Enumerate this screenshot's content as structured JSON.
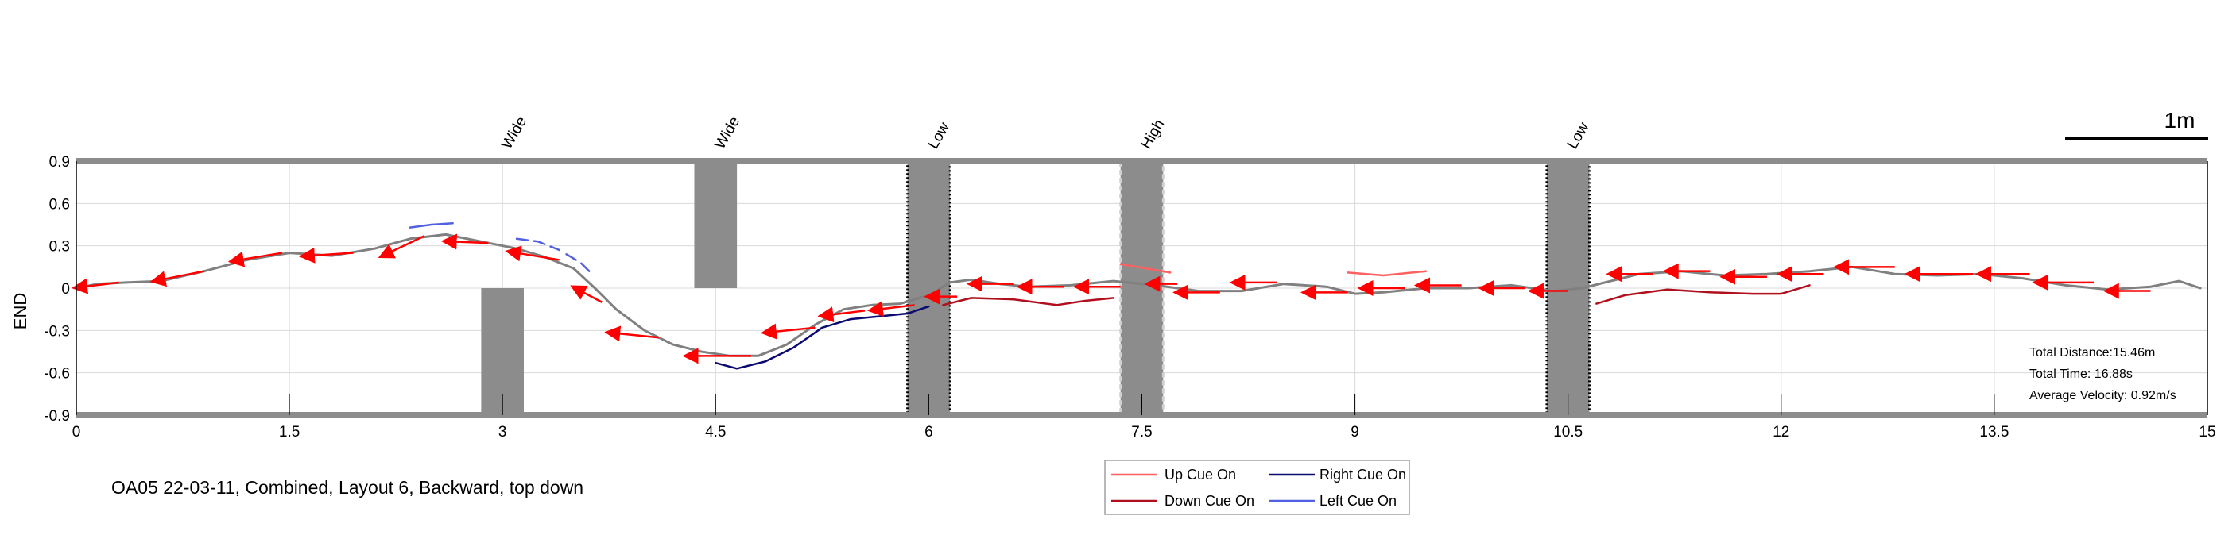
{
  "chart_data": {
    "type": "line",
    "title": "OA05 22-03-11, Combined, Layout 6, Backward, top down",
    "xlabel": "",
    "ylabel": "END",
    "xlim": [
      0,
      15
    ],
    "ylim": [
      -0.9,
      0.9
    ],
    "grid": true,
    "x_ticks": [
      0,
      1.5,
      3,
      4.5,
      6,
      7.5,
      9,
      10.5,
      12,
      13.5,
      15
    ],
    "x_tick_labels": [
      "0",
      "1.5",
      "3",
      "4.5",
      "6",
      "7.5",
      "9",
      "10.5",
      "12",
      "13.5",
      "15"
    ],
    "y_ticks": [
      0.9,
      0.6,
      0.3,
      0,
      -0.3,
      -0.6,
      -0.9
    ],
    "y_tick_labels": [
      "0.9",
      "0.6",
      "0.3",
      "0",
      "-0.3",
      "-0.6",
      "-0.9"
    ],
    "scale_bar_label": "1m",
    "obstacles": [
      {
        "label": "",
        "x0": 2.85,
        "x1": 3.15,
        "y0": -0.9,
        "y1": 0,
        "style": "solid"
      },
      {
        "label": "Wide",
        "x0": 4.35,
        "x1": 4.65,
        "y0": 0,
        "y1": 0.9,
        "style": "solid",
        "label_x": 4.55
      },
      {
        "label": "Wide",
        "x0": 2.85,
        "x1": 3.15,
        "y0": -0.9,
        "y1": 0,
        "style": "label-only",
        "label_x": 3.05
      },
      {
        "label": "Low",
        "x0": 5.85,
        "x1": 6.15,
        "y0": -0.9,
        "y1": 0.9,
        "style": "dotted-black",
        "label_x": 6.05
      },
      {
        "label": "High",
        "x0": 7.35,
        "x1": 7.65,
        "y0": -0.9,
        "y1": 0.9,
        "style": "dashed-light",
        "label_x": 7.55
      },
      {
        "label": "Low",
        "x0": 10.35,
        "x1": 10.65,
        "y0": -0.9,
        "y1": 0.9,
        "style": "dotted-black",
        "label_x": 10.55
      }
    ],
    "series": [
      {
        "name": "",
        "color": "#808080",
        "x": [
          0,
          0.15,
          0.35,
          0.6,
          0.9,
          1.2,
          1.5,
          1.8,
          2.1,
          2.35,
          2.6,
          2.85,
          3.1,
          3.3,
          3.5,
          3.65,
          3.8,
          4.0,
          4.2,
          4.4,
          4.6,
          4.8,
          5.0,
          5.2,
          5.4,
          5.6,
          5.8,
          6.0,
          6.15,
          6.3,
          6.5,
          6.7,
          7.0,
          7.3,
          7.6,
          7.9,
          8.2,
          8.5,
          8.8,
          9.0,
          9.2,
          9.5,
          9.8,
          10.1,
          10.4,
          10.6,
          10.8,
          11.0,
          11.3,
          11.6,
          11.9,
          12.2,
          12.5,
          12.8,
          13.1,
          13.4,
          13.7,
          14.0,
          14.3,
          14.6,
          14.8,
          14.95
        ],
        "y": [
          0,
          0.03,
          0.04,
          0.05,
          0.12,
          0.2,
          0.25,
          0.23,
          0.28,
          0.35,
          0.38,
          0.33,
          0.28,
          0.22,
          0.14,
          0.0,
          -0.15,
          -0.3,
          -0.4,
          -0.45,
          -0.48,
          -0.48,
          -0.4,
          -0.26,
          -0.15,
          -0.12,
          -0.11,
          -0.05,
          0.04,
          0.06,
          0.03,
          0.01,
          0.02,
          0.05,
          0.02,
          -0.02,
          -0.02,
          0.03,
          0.01,
          -0.04,
          -0.03,
          0.0,
          0.0,
          0.02,
          -0.02,
          0.0,
          0.05,
          0.1,
          0.12,
          0.09,
          0.1,
          0.12,
          0.15,
          0.1,
          0.09,
          0.1,
          0.07,
          0.02,
          -0.01,
          0.01,
          0.05,
          0.0
        ]
      },
      {
        "name": "Up Cue On",
        "color": "#ff6060",
        "segments": [
          {
            "x": [
              7.35,
              7.7
            ],
            "y": [
              0.17,
              0.11
            ]
          },
          {
            "x": [
              8.95,
              9.2,
              9.5
            ],
            "y": [
              0.11,
              0.09,
              0.12
            ]
          }
        ]
      },
      {
        "name": "Down Cue On",
        "color": "#b0101e",
        "segments": [
          {
            "x": [
              6.1,
              6.3,
              6.6,
              6.9,
              7.1,
              7.3
            ],
            "y": [
              -0.12,
              -0.07,
              -0.08,
              -0.12,
              -0.09,
              -0.07
            ]
          },
          {
            "x": [
              10.7,
              10.9,
              11.2,
              11.5,
              11.8,
              12.0,
              12.2
            ],
            "y": [
              -0.11,
              -0.05,
              -0.01,
              -0.03,
              -0.04,
              -0.04,
              0.02
            ]
          }
        ]
      },
      {
        "name": "Right Cue On",
        "color": "#0a0a70",
        "segments": [
          {
            "x": [
              4.5,
              4.65,
              4.85,
              5.05,
              5.25,
              5.45,
              5.65,
              5.85,
              6.0
            ],
            "y": [
              -0.53,
              -0.57,
              -0.52,
              -0.42,
              -0.28,
              -0.22,
              -0.2,
              -0.18,
              -0.13
            ]
          }
        ]
      },
      {
        "name": "Left Cue On",
        "color": "#5060e0",
        "segments": [
          {
            "x": [
              2.35,
              2.5,
              2.65
            ],
            "y": [
              0.43,
              0.45,
              0.46
            ]
          },
          {
            "x": [
              3.1,
              3.25,
              3.4
            ],
            "y": [
              0.35,
              0.33,
              0.27
            ]
          },
          {
            "x": [
              3.45,
              3.55,
              3.62
            ],
            "y": [
              0.24,
              0.18,
              0.11
            ]
          }
        ]
      }
    ],
    "arrows": [
      {
        "x": 0.3,
        "y": 0.04,
        "dx": -0.25,
        "dy": -0.03
      },
      {
        "x": 0.9,
        "y": 0.12,
        "dx": -0.3,
        "dy": -0.06
      },
      {
        "x": 1.45,
        "y": 0.25,
        "dx": -0.3,
        "dy": -0.05
      },
      {
        "x": 1.95,
        "y": 0.25,
        "dx": -0.3,
        "dy": -0.02
      },
      {
        "x": 2.45,
        "y": 0.37,
        "dx": -0.25,
        "dy": -0.12
      },
      {
        "x": 2.9,
        "y": 0.32,
        "dx": -0.25,
        "dy": 0.01
      },
      {
        "x": 3.4,
        "y": 0.2,
        "dx": -0.3,
        "dy": 0.05
      },
      {
        "x": 3.7,
        "y": -0.1,
        "dx": -0.15,
        "dy": 0.08
      },
      {
        "x": 4.1,
        "y": -0.35,
        "dx": -0.3,
        "dy": 0.03
      },
      {
        "x": 4.75,
        "y": -0.48,
        "dx": -0.4,
        "dy": 0.0
      },
      {
        "x": 5.2,
        "y": -0.28,
        "dx": -0.3,
        "dy": -0.03
      },
      {
        "x": 5.55,
        "y": -0.16,
        "dx": -0.25,
        "dy": -0.03
      },
      {
        "x": 5.9,
        "y": -0.12,
        "dx": -0.25,
        "dy": -0.03
      },
      {
        "x": 6.2,
        "y": -0.06,
        "dx": -0.15,
        "dy": 0.0
      },
      {
        "x": 6.6,
        "y": 0.03,
        "dx": -0.25,
        "dy": 0.0
      },
      {
        "x": 6.95,
        "y": 0.01,
        "dx": -0.25,
        "dy": 0.0
      },
      {
        "x": 7.35,
        "y": 0.01,
        "dx": -0.25,
        "dy": 0.0
      },
      {
        "x": 7.75,
        "y": 0.03,
        "dx": -0.15,
        "dy": 0.0
      },
      {
        "x": 8.05,
        "y": -0.03,
        "dx": -0.25,
        "dy": 0.0
      },
      {
        "x": 8.45,
        "y": 0.04,
        "dx": -0.25,
        "dy": 0.0
      },
      {
        "x": 8.95,
        "y": -0.03,
        "dx": -0.25,
        "dy": 0.0
      },
      {
        "x": 9.35,
        "y": 0.0,
        "dx": -0.25,
        "dy": 0.0
      },
      {
        "x": 9.75,
        "y": 0.02,
        "dx": -0.25,
        "dy": 0.0
      },
      {
        "x": 10.2,
        "y": 0.0,
        "dx": -0.25,
        "dy": 0.0
      },
      {
        "x": 10.5,
        "y": -0.02,
        "dx": -0.2,
        "dy": 0.0
      },
      {
        "x": 11.1,
        "y": 0.1,
        "dx": -0.25,
        "dy": 0.0
      },
      {
        "x": 11.5,
        "y": 0.12,
        "dx": -0.25,
        "dy": 0.0
      },
      {
        "x": 11.9,
        "y": 0.08,
        "dx": -0.25,
        "dy": 0.0
      },
      {
        "x": 12.3,
        "y": 0.1,
        "dx": -0.25,
        "dy": 0.0
      },
      {
        "x": 12.8,
        "y": 0.15,
        "dx": -0.35,
        "dy": 0.0
      },
      {
        "x": 13.35,
        "y": 0.1,
        "dx": -0.4,
        "dy": 0.0
      },
      {
        "x": 13.75,
        "y": 0.1,
        "dx": -0.3,
        "dy": 0.0
      },
      {
        "x": 14.2,
        "y": 0.04,
        "dx": -0.35,
        "dy": 0.0
      },
      {
        "x": 14.6,
        "y": -0.02,
        "dx": -0.25,
        "dy": 0.0
      }
    ],
    "legend": {
      "placement": "bottom-center",
      "entries": [
        {
          "label": "Up Cue On",
          "color": "#ff6060"
        },
        {
          "label": "Right Cue On",
          "color": "#0a0a70"
        },
        {
          "label": "Down Cue On",
          "color": "#b0101e"
        },
        {
          "label": "Left Cue On",
          "color": "#5060e0"
        }
      ]
    },
    "stats": {
      "total_distance": "Total Distance:15.46m",
      "total_time": "Total Time: 16.88s",
      "average_velocity": "Average Velocity: 0.92m/s"
    }
  },
  "colors": {
    "obstacle_fill": "#8c8c8c",
    "grid": "#d9d9d9",
    "arrow": "#ff0000",
    "wall": "#8c8c8c"
  }
}
